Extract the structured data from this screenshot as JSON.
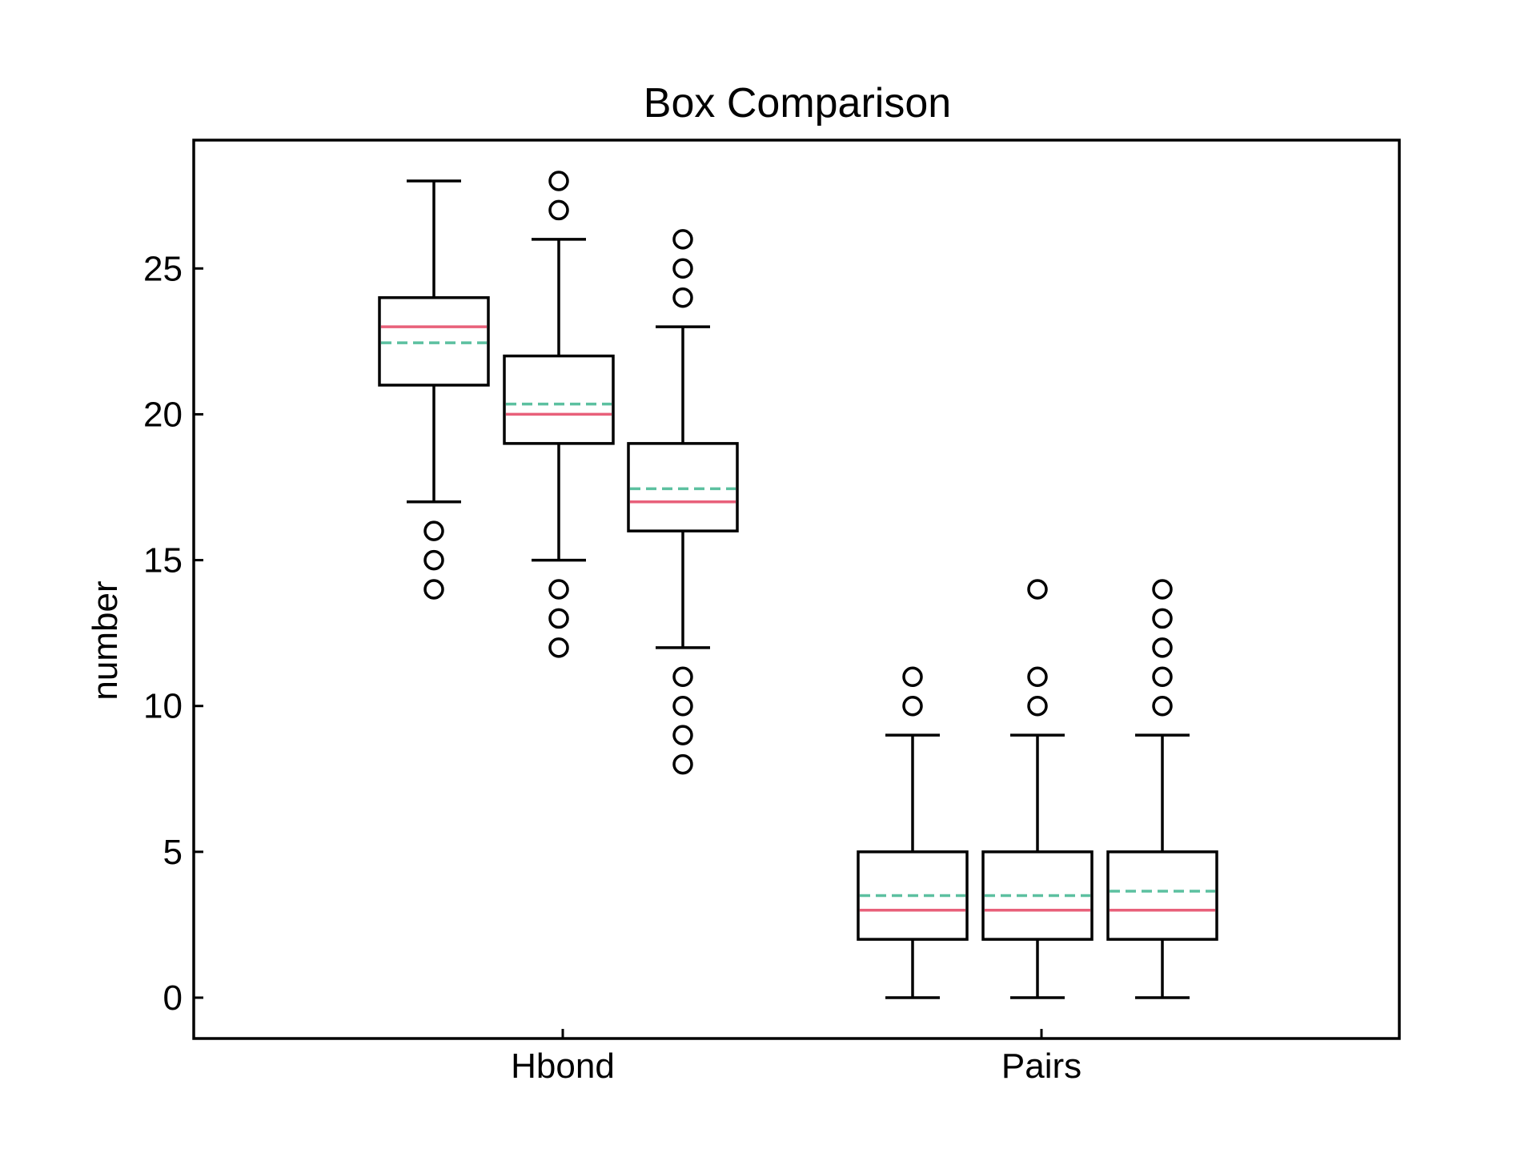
{
  "chart_data": {
    "type": "box",
    "title": "Box Comparison",
    "xlabel": "",
    "ylabel": "number",
    "ylim": [
      -1.4,
      29.4
    ],
    "yticks": [
      0,
      5,
      10,
      15,
      20,
      25
    ],
    "grid": false,
    "legend": "none",
    "groups": [
      "Hbond",
      "Pairs"
    ],
    "colors": {
      "box": "#000000",
      "median": "#e8607a",
      "mean": "#5cc0a0"
    },
    "boxes": [
      {
        "group": "Hbond",
        "whisker_low": 17,
        "q1": 21,
        "median": 23,
        "q3": 24,
        "whisker_high": 28,
        "mean": 22.45,
        "outliers": [
          14,
          15,
          16
        ]
      },
      {
        "group": "Hbond",
        "whisker_low": 15,
        "q1": 19,
        "median": 20,
        "q3": 22,
        "whisker_high": 26,
        "mean": 20.35,
        "outliers": [
          12,
          13,
          14,
          27,
          28
        ]
      },
      {
        "group": "Hbond",
        "whisker_low": 12,
        "q1": 16,
        "median": 17,
        "q3": 19,
        "whisker_high": 23,
        "mean": 17.45,
        "outliers": [
          8,
          9,
          10,
          11,
          24,
          25,
          26
        ]
      },
      {
        "group": "Pairs",
        "whisker_low": 0,
        "q1": 2,
        "median": 3,
        "q3": 5,
        "whisker_high": 9,
        "mean": 3.5,
        "outliers": [
          10,
          11
        ]
      },
      {
        "group": "Pairs",
        "whisker_low": 0,
        "q1": 2,
        "median": 3,
        "q3": 5,
        "whisker_high": 9,
        "mean": 3.5,
        "outliers": [
          10,
          11,
          14
        ]
      },
      {
        "group": "Pairs",
        "whisker_low": 0,
        "q1": 2,
        "median": 3,
        "q3": 5,
        "whisker_high": 9,
        "mean": 3.65,
        "outliers": [
          10,
          11,
          12,
          13,
          14
        ]
      }
    ]
  }
}
